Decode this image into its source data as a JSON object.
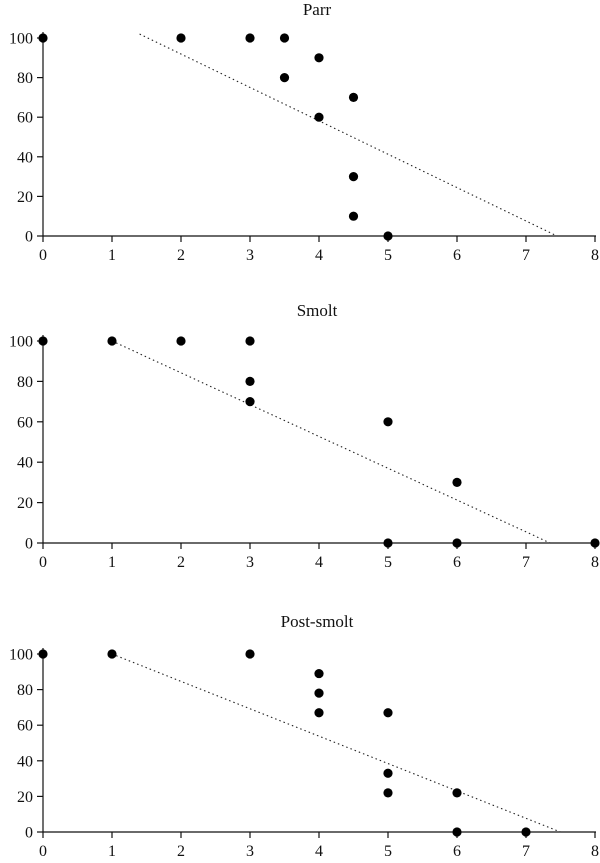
{
  "chart_data": [
    {
      "type": "scatter",
      "title": "Parr",
      "xlim": [
        0,
        8
      ],
      "ylim": [
        0,
        100
      ],
      "xticks": [
        0,
        1,
        2,
        3,
        4,
        5,
        6,
        7,
        8
      ],
      "yticks": [
        0,
        20,
        40,
        60,
        80,
        100
      ],
      "grid": false,
      "points": [
        {
          "x": 0,
          "y": 100
        },
        {
          "x": 2,
          "y": 100
        },
        {
          "x": 3,
          "y": 100
        },
        {
          "x": 3.5,
          "y": 100
        },
        {
          "x": 3.5,
          "y": 80
        },
        {
          "x": 4,
          "y": 90
        },
        {
          "x": 4,
          "y": 60
        },
        {
          "x": 4.5,
          "y": 70
        },
        {
          "x": 4.5,
          "y": 30
        },
        {
          "x": 4.5,
          "y": 10
        },
        {
          "x": 5,
          "y": 0
        }
      ],
      "trendline": {
        "style": "dotted",
        "from": {
          "x": 1.4,
          "y": 102
        },
        "to": {
          "x": 7.45,
          "y": 0
        }
      }
    },
    {
      "type": "scatter",
      "title": "Smolt",
      "xlim": [
        0,
        8
      ],
      "ylim": [
        0,
        100
      ],
      "xticks": [
        0,
        1,
        2,
        3,
        4,
        5,
        6,
        7,
        8
      ],
      "yticks": [
        0,
        20,
        40,
        60,
        80,
        100
      ],
      "grid": false,
      "points": [
        {
          "x": 0,
          "y": 100
        },
        {
          "x": 1,
          "y": 100
        },
        {
          "x": 2,
          "y": 100
        },
        {
          "x": 3,
          "y": 100
        },
        {
          "x": 3,
          "y": 80
        },
        {
          "x": 3,
          "y": 70
        },
        {
          "x": 5,
          "y": 60
        },
        {
          "x": 5,
          "y": 0
        },
        {
          "x": 6,
          "y": 30
        },
        {
          "x": 6,
          "y": 0
        },
        {
          "x": 8,
          "y": 0
        }
      ],
      "trendline": {
        "style": "dotted",
        "from": {
          "x": 1,
          "y": 100
        },
        "to": {
          "x": 7.35,
          "y": 0
        }
      }
    },
    {
      "type": "scatter",
      "title": "Post-smolt",
      "xlim": [
        0,
        8
      ],
      "ylim": [
        0,
        100
      ],
      "xticks": [
        0,
        1,
        2,
        3,
        4,
        5,
        6,
        7,
        8
      ],
      "yticks": [
        0,
        20,
        40,
        60,
        80,
        100
      ],
      "grid": false,
      "points": [
        {
          "x": 0,
          "y": 100
        },
        {
          "x": 1,
          "y": 100
        },
        {
          "x": 3,
          "y": 100
        },
        {
          "x": 4,
          "y": 89
        },
        {
          "x": 4,
          "y": 78
        },
        {
          "x": 4,
          "y": 67
        },
        {
          "x": 5,
          "y": 67
        },
        {
          "x": 5,
          "y": 33
        },
        {
          "x": 5,
          "y": 22
        },
        {
          "x": 6,
          "y": 22
        },
        {
          "x": 6,
          "y": 0
        },
        {
          "x": 7,
          "y": 0
        }
      ],
      "trendline": {
        "style": "dotted",
        "from": {
          "x": 1,
          "y": 100
        },
        "to": {
          "x": 7.5,
          "y": 0
        }
      }
    }
  ]
}
